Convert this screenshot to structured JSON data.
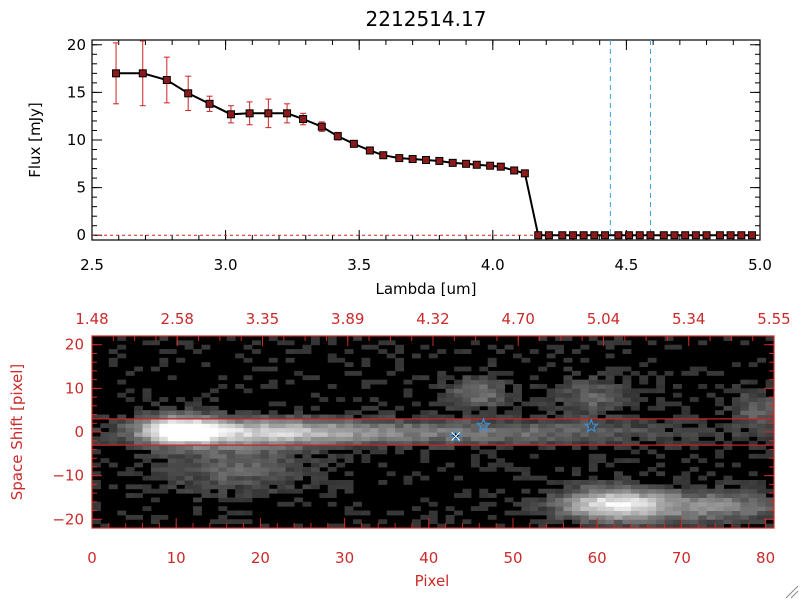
{
  "title": "2212514.17",
  "colors": {
    "spectrum_line": "#000000",
    "spectrum_marker": "#8b1a1a",
    "error_bar": "#cc2222",
    "zero_line": "#cc2222",
    "marker_line": "#3aa0d8",
    "lower_axis": "#cc2a2a",
    "extraction_line": "#cc2222",
    "star_marker": "#3a8fd8",
    "image_background": "#000000"
  },
  "chart_data": [
    {
      "type": "line",
      "title": "2212514.17",
      "xlabel": "Lambda [um]",
      "ylabel": "Flux [mJy]",
      "xlim": [
        2.5,
        5.0
      ],
      "ylim": [
        -0.5,
        20.5
      ],
      "xticks": [
        "2.5",
        "3.0",
        "3.5",
        "4.0",
        "4.5",
        "5.0"
      ],
      "yticks": [
        "0",
        "5",
        "10",
        "15",
        "20"
      ],
      "x": [
        2.59,
        2.69,
        2.78,
        2.86,
        2.94,
        3.02,
        3.09,
        3.16,
        3.23,
        3.29,
        3.36,
        3.42,
        3.48,
        3.54,
        3.59,
        3.65,
        3.7,
        3.75,
        3.8,
        3.85,
        3.9,
        3.94,
        3.99,
        4.03,
        4.08,
        4.12,
        4.17,
        4.21,
        4.26,
        4.3,
        4.34,
        4.38,
        4.42,
        4.47,
        4.51,
        4.55,
        4.59,
        4.64,
        4.68,
        4.72,
        4.76,
        4.8,
        4.85,
        4.89,
        4.93,
        4.97
      ],
      "y": [
        17.0,
        17.0,
        16.3,
        14.9,
        13.8,
        12.7,
        12.8,
        12.8,
        12.8,
        12.2,
        11.4,
        10.4,
        9.6,
        8.9,
        8.4,
        8.1,
        8.0,
        7.9,
        7.8,
        7.6,
        7.5,
        7.4,
        7.3,
        7.2,
        6.8,
        6.5,
        0.0,
        0.0,
        0.0,
        0.0,
        0.0,
        0.0,
        0.0,
        0.0,
        0.0,
        0.0,
        0.0,
        0.0,
        0.0,
        0.0,
        0.0,
        0.0,
        0.0,
        0.0,
        0.0,
        0.0
      ],
      "yerr": [
        3.2,
        3.4,
        2.4,
        1.8,
        0.8,
        0.9,
        1.2,
        1.5,
        1.0,
        0.6,
        0.5,
        0.4,
        0.3,
        0.3,
        0.3,
        0.3,
        0.3,
        0.3,
        0.3,
        0.3,
        0.3,
        0.3,
        0.3,
        0.3,
        0.3,
        0.3,
        0,
        0,
        0,
        0,
        0,
        0,
        0,
        0,
        0,
        0,
        0,
        0,
        0,
        0,
        0,
        0,
        0,
        0,
        0,
        0
      ],
      "vlines": [
        4.44,
        4.59
      ],
      "zero_line": 0
    },
    {
      "type": "heatmap",
      "xlabel": "Pixel",
      "ylabel": "Space Shift [pixel]",
      "xlim": [
        0,
        81
      ],
      "ylim": [
        -22,
        22
      ],
      "xticks": [
        "0",
        "10",
        "20",
        "30",
        "40",
        "50",
        "60",
        "70",
        "80"
      ],
      "yticks": [
        "−20",
        "−10",
        "0",
        "10",
        "20"
      ],
      "top_ticks": [
        "1.48",
        "2.58",
        "3.35",
        "3.89",
        "4.32",
        "4.70",
        "5.04",
        "5.34",
        "5.55"
      ],
      "extraction_window": [
        -3,
        3
      ],
      "stars": [
        {
          "x": 46.5,
          "y": 1.5
        },
        {
          "x": 59.3,
          "y": 1.3
        }
      ],
      "cross_marker": {
        "x": 43.2,
        "y": -1.0
      },
      "sources": [
        {
          "x": 10.5,
          "y": 0.5,
          "peak": 1.0,
          "sx": 3.2,
          "sy": 2.2
        },
        {
          "x": 20,
          "y": 0.0,
          "peak": 0.55,
          "sx": 8,
          "sy": 2.2
        },
        {
          "x": 40,
          "y": 0.0,
          "peak": 0.38,
          "sx": 20,
          "sy": 2.0
        },
        {
          "x": 62,
          "y": -16.5,
          "peak": 0.9,
          "sx": 4.5,
          "sy": 2.6
        },
        {
          "x": 74,
          "y": -17,
          "peak": 0.45,
          "sx": 6,
          "sy": 2.4
        },
        {
          "x": 46,
          "y": 9,
          "peak": 0.35,
          "sx": 2.5,
          "sy": 2.5
        },
        {
          "x": 59,
          "y": 8,
          "peak": 0.28,
          "sx": 3,
          "sy": 3
        },
        {
          "x": 17,
          "y": -8,
          "peak": 0.28,
          "sx": 6,
          "sy": 4
        },
        {
          "x": 79,
          "y": 5,
          "peak": 0.3,
          "sx": 2,
          "sy": 3
        }
      ]
    }
  ]
}
